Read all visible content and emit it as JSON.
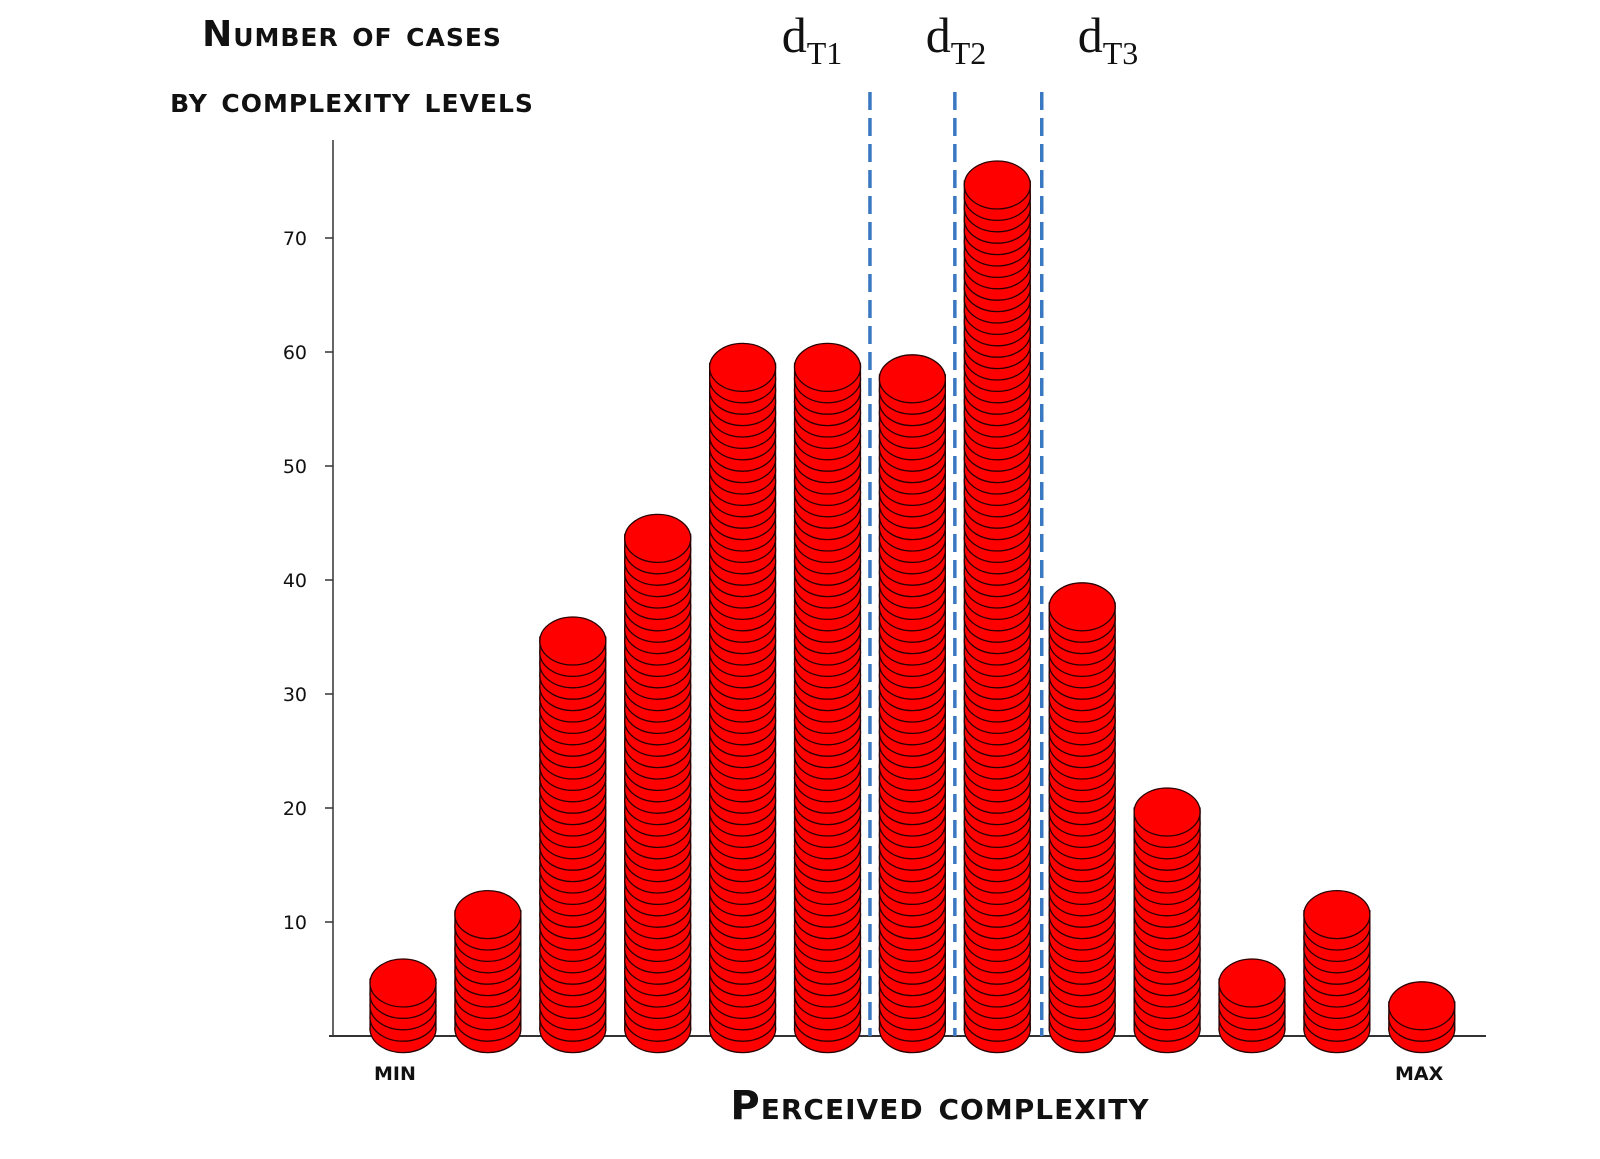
{
  "chart_data": {
    "type": "bar",
    "ylabel_line1": "Number of cases",
    "ylabel_line2": "by complexity levels",
    "xlabel": "Perceived complexity",
    "x_min_label": "MIN",
    "x_max_label": "MAX",
    "yticks": [
      10,
      20,
      30,
      40,
      50,
      60,
      70
    ],
    "ylim": [
      0,
      78
    ],
    "bar_style": "stacked red discs",
    "bar_color": "#ff0000",
    "bar_edge_color": "#2a0000",
    "values": [
      5,
      11,
      35,
      44,
      59,
      59,
      58,
      75,
      38,
      20,
      5,
      11,
      3
    ],
    "thresholds": [
      {
        "label": "d",
        "sub": "T1",
        "after_bar": 6
      },
      {
        "label": "d",
        "sub": "T2",
        "after_bar": 7
      },
      {
        "label": "d",
        "sub": "T3",
        "after_bar": 8
      }
    ],
    "threshold_color": "#3a78c2"
  }
}
